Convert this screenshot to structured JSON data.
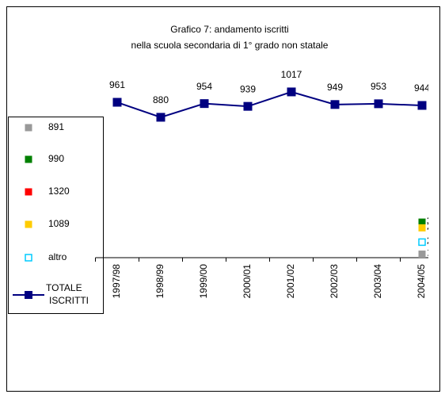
{
  "chart_data": {
    "type": "line",
    "title_lines": [
      "Grafico 7: andamento iscritti",
      "nella scuola secondaria di 1° grado non statale"
    ],
    "categories": [
      "1997/98",
      "1998/99",
      "1999/00",
      "2000/01",
      "2001/02",
      "2002/03",
      "2003/04",
      "2004/05"
    ],
    "ylim": [
      122,
      1128
    ],
    "series": [
      {
        "name": "891",
        "color": "#999999",
        "label_color": "#999999",
        "values": [
          null,
          null,
          null,
          null,
          null,
          null,
          null,
          141
        ]
      },
      {
        "name": "990",
        "color": "#008000",
        "label_color": "#339966",
        "values": [
          null,
          null,
          null,
          null,
          null,
          null,
          null,
          314
        ]
      },
      {
        "name": "1320",
        "color": "#ff0000",
        "label_color": "#ff0000",
        "values": [
          null,
          null,
          null,
          null,
          null,
          null,
          null,
          null
        ]
      },
      {
        "name": "1089",
        "color": "#ffcc00",
        "label_color": "#ff9900",
        "values": [
          null,
          null,
          null,
          null,
          null,
          null,
          null,
          283
        ]
      },
      {
        "name": "altro",
        "color": "#00ccff",
        "label_color": "#00ccff",
        "hollow": true,
        "values": [
          null,
          null,
          null,
          null,
          null,
          null,
          null,
          206
        ]
      },
      {
        "name": "TOTALE ISCRITTI",
        "color": "#000080",
        "line": true,
        "label_color": "#000000",
        "label_colors": [
          "#000000",
          "#000000",
          "#000000",
          "#000000",
          "#000000",
          "#000000",
          "#000000",
          "#ff0000"
        ],
        "values": [
          961,
          880,
          954,
          939,
          1017,
          949,
          953,
          944
        ]
      }
    ]
  }
}
